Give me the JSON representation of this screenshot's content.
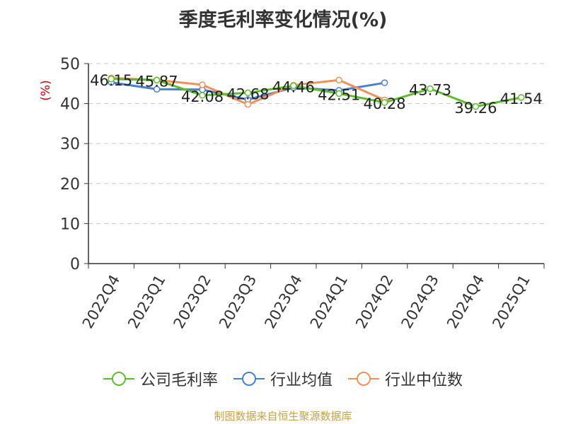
{
  "chart_data": {
    "type": "line",
    "title": "季度毛利率变化情况(%)",
    "ylabel": "(%)",
    "ylim": [
      0,
      50
    ],
    "yticks": [
      0,
      10,
      20,
      30,
      40,
      50
    ],
    "grid": true,
    "legend_position": "bottom",
    "categories": [
      "2022Q4",
      "2023Q1",
      "2023Q2",
      "2023Q3",
      "2023Q4",
      "2024Q1",
      "2024Q2",
      "2024Q3",
      "2024Q4",
      "2025Q1"
    ],
    "series": [
      {
        "name": "公司毛利率",
        "color": "#5cbf2a",
        "values": [
          46.15,
          45.87,
          42.08,
          42.68,
          44.46,
          42.51,
          40.28,
          43.73,
          39.26,
          41.54
        ],
        "labels": [
          "46.15",
          "45.87",
          "42.08",
          "42.68",
          "44.46",
          "42.51",
          "40.28",
          "43.73",
          "39.26",
          "41.54"
        ]
      },
      {
        "name": "行业均值",
        "color": "#4a7fd4",
        "values": [
          45.3,
          43.6,
          43.5,
          41.0,
          44.0,
          43.3,
          45.2,
          null,
          null,
          null
        ]
      },
      {
        "name": "行业中位数",
        "color": "#f0915a",
        "values": [
          46.4,
          45.9,
          44.7,
          39.8,
          44.6,
          45.9,
          40.9,
          null,
          null,
          null
        ]
      }
    ]
  },
  "source": "制图数据来自恒生聚源数据库"
}
